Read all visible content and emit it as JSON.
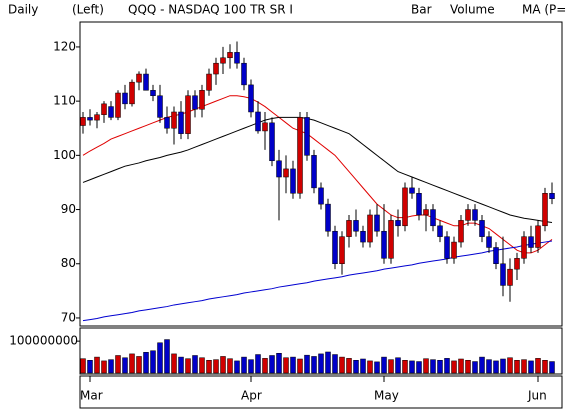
{
  "chart_data": {
    "type": "candlestick",
    "period": "Daily",
    "axis_side": "(Left)",
    "title": "QQQ - NASDAQ 100 TR SR I",
    "style": "Bar",
    "up_color": "#d00000",
    "down_color": "#0000c8",
    "categories": [
      null,
      "Mar",
      null,
      null,
      null,
      null,
      null,
      null,
      null,
      null,
      null,
      null,
      null,
      null,
      null,
      null,
      null,
      null,
      null,
      null,
      null,
      null,
      null,
      null,
      "Apr",
      null,
      null,
      null,
      null,
      null,
      null,
      null,
      null,
      null,
      null,
      null,
      null,
      null,
      null,
      null,
      null,
      null,
      null,
      "May",
      null,
      null,
      null,
      null,
      null,
      null,
      null,
      null,
      null,
      null,
      null,
      null,
      null,
      null,
      null,
      null,
      null,
      null,
      null,
      null,
      null,
      "Jun",
      null,
      null
    ],
    "open": [
      105.5,
      107,
      106.5,
      107.5,
      109,
      107,
      111.5,
      109.5,
      113.5,
      115,
      112,
      111,
      107,
      105,
      108,
      104,
      111,
      108.5,
      112,
      115,
      117,
      118,
      119,
      117,
      113,
      108,
      104.5,
      106,
      99,
      96,
      97.5,
      93,
      107,
      100,
      94,
      91,
      86,
      80,
      85,
      88,
      86,
      84,
      89,
      86,
      81,
      88,
      87,
      94,
      93,
      89,
      90,
      87,
      85,
      81,
      84,
      88,
      90,
      88,
      85,
      83,
      80,
      76,
      79,
      81,
      85,
      83,
      87,
      93
    ],
    "high": [
      108,
      108.5,
      108,
      110,
      110,
      112,
      113,
      114,
      115.5,
      116,
      113,
      113,
      109,
      109,
      110,
      112,
      112,
      113,
      116,
      118,
      120,
      120.5,
      121,
      118,
      114,
      110,
      108,
      107,
      101,
      100,
      99,
      108,
      108,
      101,
      95,
      92,
      87,
      86,
      89,
      90,
      87,
      90,
      91,
      91,
      89,
      90,
      95,
      96,
      94,
      91,
      91,
      88,
      86,
      85,
      89,
      91,
      91,
      89,
      86,
      84,
      85,
      81,
      82,
      86,
      87,
      88,
      94,
      95
    ],
    "low": [
      104,
      105.5,
      105,
      106,
      106.5,
      106.5,
      108.5,
      109,
      112,
      112,
      110,
      106,
      104,
      102,
      103,
      103,
      107,
      107,
      111,
      113,
      115,
      116,
      116,
      112,
      107,
      104,
      101,
      98,
      88,
      93,
      92,
      92,
      99,
      93,
      90,
      85,
      79,
      78,
      83,
      85,
      83,
      83,
      85,
      80,
      80,
      85,
      86,
      92,
      88,
      86,
      86,
      84,
      80,
      80,
      83,
      87,
      87,
      84,
      82,
      79,
      74,
      73,
      77,
      80,
      82,
      82,
      86,
      91
    ],
    "close": [
      107,
      106.5,
      107.5,
      109.5,
      107,
      111.5,
      109.5,
      113.5,
      115,
      112,
      111,
      107,
      105,
      108,
      104,
      111,
      108.5,
      112,
      115,
      117,
      118,
      119,
      117,
      113,
      108,
      104.5,
      106,
      99,
      96,
      97.5,
      93,
      107,
      100,
      94,
      91,
      86,
      80,
      85,
      88,
      86,
      84,
      89,
      86,
      81,
      88,
      87,
      94,
      93,
      89,
      90,
      87,
      85,
      81,
      84,
      88,
      90,
      88,
      85,
      83,
      80,
      76,
      79,
      81,
      85,
      83,
      87,
      93,
      92
    ],
    "ylim": [
      68.7,
      124.6
    ],
    "yticks": [
      70,
      80,
      90,
      100,
      110,
      120
    ],
    "grid": false,
    "ma": {
      "label": "MA (P=",
      "label_color": "#d00000",
      "series": [
        {
          "color": "#e00000",
          "values": [
            100,
            100.8,
            101.5,
            102.2,
            103,
            103.5,
            104,
            104.5,
            105,
            105.5,
            106,
            106.5,
            107,
            107.3,
            107.6,
            108,
            108.5,
            109,
            109.5,
            110,
            110.5,
            111,
            111,
            110.8,
            110.5,
            109.8,
            109,
            108,
            107,
            106,
            105,
            104.5,
            104,
            103,
            102,
            101,
            100,
            98.5,
            97,
            95.5,
            94,
            92.5,
            91,
            90,
            89,
            88.5,
            88.5,
            88.8,
            89,
            89,
            88.5,
            88,
            87.5,
            87,
            87,
            87.5,
            87.5,
            87,
            86.5,
            85.5,
            84.5,
            83.5,
            82.5,
            82,
            82,
            82.5,
            83.5,
            84.5
          ]
        },
        {
          "color": "#000000",
          "values": [
            95,
            95.5,
            96,
            96.5,
            97,
            97.5,
            98,
            98.3,
            98.6,
            99,
            99.3,
            99.6,
            100,
            100.3,
            100.6,
            101,
            101.5,
            102,
            102.5,
            103,
            103.5,
            104,
            104.5,
            105,
            105.5,
            106,
            106.5,
            106.8,
            107,
            107,
            107,
            107,
            106.8,
            106.5,
            106,
            105.5,
            105,
            104.5,
            104,
            103,
            102,
            101,
            100,
            99,
            98,
            97,
            96.5,
            96,
            95.5,
            95,
            94.5,
            94,
            93.5,
            93,
            92.5,
            92,
            91.5,
            91,
            90.5,
            90,
            89.5,
            89,
            88.7,
            88.4,
            88.2,
            88,
            87.8,
            87.6
          ]
        },
        {
          "color": "#0000d0",
          "values": [
            69.5,
            69.7,
            69.9,
            70.2,
            70.4,
            70.6,
            70.8,
            71.0,
            71.3,
            71.5,
            71.7,
            71.9,
            72.1,
            72.4,
            72.6,
            72.8,
            73.0,
            73.2,
            73.5,
            73.7,
            73.9,
            74.1,
            74.3,
            74.6,
            74.8,
            75.0,
            75.2,
            75.4,
            75.7,
            75.9,
            76.1,
            76.3,
            76.5,
            76.8,
            77.0,
            77.2,
            77.4,
            77.6,
            77.9,
            78.1,
            78.3,
            78.5,
            78.7,
            79.0,
            79.2,
            79.4,
            79.6,
            79.8,
            80.1,
            80.3,
            80.5,
            80.7,
            80.9,
            81.2,
            81.4,
            81.6,
            81.8,
            82.0,
            82.3,
            82.5,
            82.7,
            82.9,
            83.1,
            83.4,
            83.6,
            83.8,
            84.0,
            84.2
          ]
        }
      ]
    },
    "volume": {
      "name": "Volume",
      "color": "#00b000",
      "ylim": [
        0,
        135000000
      ],
      "yticks": [
        100000000
      ],
      "values": [
        45000000,
        40000000,
        50000000,
        38000000,
        42000000,
        55000000,
        48000000,
        60000000,
        52000000,
        65000000,
        70000000,
        95000000,
        105000000,
        60000000,
        50000000,
        45000000,
        55000000,
        48000000,
        40000000,
        42000000,
        52000000,
        45000000,
        38000000,
        50000000,
        42000000,
        58000000,
        46000000,
        55000000,
        62000000,
        48000000,
        50000000,
        44000000,
        56000000,
        52000000,
        60000000,
        66000000,
        58000000,
        50000000,
        46000000,
        40000000,
        44000000,
        38000000,
        35000000,
        50000000,
        42000000,
        48000000,
        40000000,
        38000000,
        36000000,
        45000000,
        42000000,
        40000000,
        46000000,
        38000000,
        44000000,
        40000000,
        36000000,
        50000000,
        42000000,
        38000000,
        44000000,
        48000000,
        40000000,
        42000000,
        38000000,
        46000000,
        40000000,
        36000000
      ]
    }
  }
}
